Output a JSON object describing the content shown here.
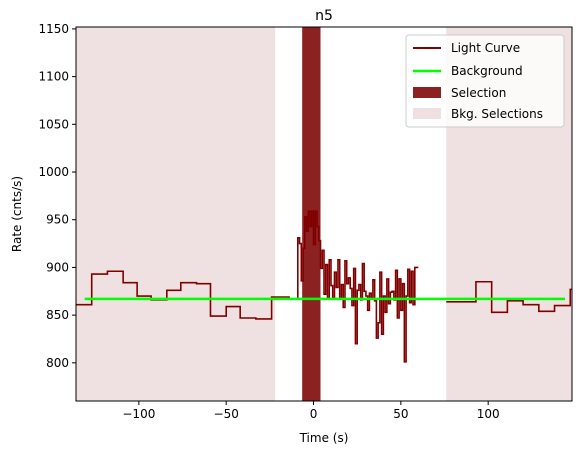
{
  "chart_data": {
    "type": "line",
    "title": "n5",
    "xlabel": "Time (s)",
    "ylabel": "Rate (cnts/s)",
    "xlim": [
      -136,
      148
    ],
    "ylim": [
      760,
      1152
    ],
    "xticks": [
      -100,
      -50,
      0,
      50,
      100
    ],
    "yticks": [
      800,
      850,
      900,
      950,
      1000,
      1050,
      1100,
      1150
    ],
    "legend_position": "top-right",
    "grid": false,
    "colors": {
      "light_curve": "#800000",
      "background": "#00ff00",
      "selection": "#8c2121",
      "bkg_selection": "#efe1e1"
    },
    "legend": {
      "light_curve": "Light Curve",
      "background": "Background",
      "selection": "Selection",
      "bkg_selections": "Bkg. Selections"
    },
    "background_level": 867,
    "selection_range": [
      -6.5,
      4.0
    ],
    "bkg_selections": [
      [
        -136,
        -22
      ],
      [
        76,
        148
      ]
    ],
    "light_curve": [
      [
        -136,
        861
      ],
      [
        -127,
        893
      ],
      [
        -118,
        896
      ],
      [
        -109,
        884
      ],
      [
        -101,
        870
      ],
      [
        -93,
        866
      ],
      [
        -84,
        876
      ],
      [
        -76,
        884
      ],
      [
        -67,
        883
      ],
      [
        -59,
        849
      ],
      [
        -50,
        859
      ],
      [
        -42,
        847
      ],
      [
        -33,
        846
      ],
      [
        -24,
        869
      ],
      [
        -14,
        867
      ],
      [
        -9,
        931
      ],
      [
        -8,
        925
      ],
      [
        -7,
        886
      ],
      [
        -6,
        920
      ],
      [
        -5,
        953
      ],
      [
        -4,
        938
      ],
      [
        -3,
        959
      ],
      [
        -2,
        943
      ],
      [
        -1,
        959
      ],
      [
        0,
        924
      ],
      [
        1,
        959
      ],
      [
        2,
        943
      ],
      [
        3,
        928
      ],
      [
        4,
        899
      ],
      [
        5,
        918
      ],
      [
        6,
        872
      ],
      [
        7,
        903
      ],
      [
        8,
        868
      ],
      [
        9,
        908
      ],
      [
        10,
        881
      ],
      [
        11,
        868
      ],
      [
        12,
        895
      ],
      [
        13,
        879
      ],
      [
        14,
        908
      ],
      [
        15,
        867
      ],
      [
        16,
        882
      ],
      [
        17,
        858
      ],
      [
        18,
        907
      ],
      [
        19,
        883
      ],
      [
        20,
        889
      ],
      [
        21,
        878
      ],
      [
        22,
        860
      ],
      [
        23,
        899
      ],
      [
        24,
        820
      ],
      [
        25,
        876
      ],
      [
        26,
        882
      ],
      [
        27,
        866
      ],
      [
        28,
        904
      ],
      [
        29,
        875
      ],
      [
        30,
        870
      ],
      [
        31,
        855
      ],
      [
        32,
        873
      ],
      [
        33,
        868
      ],
      [
        34,
        887
      ],
      [
        35,
        865
      ],
      [
        36,
        826
      ],
      [
        37,
        842
      ],
      [
        38,
        895
      ],
      [
        39,
        830
      ],
      [
        40,
        870
      ],
      [
        41,
        853
      ],
      [
        42,
        888
      ],
      [
        43,
        862
      ],
      [
        44,
        874
      ],
      [
        45,
        875
      ],
      [
        46,
        866
      ],
      [
        47,
        897
      ],
      [
        48,
        847
      ],
      [
        49,
        888
      ],
      [
        50,
        855
      ],
      [
        51,
        883
      ],
      [
        52,
        801
      ],
      [
        53,
        870
      ],
      [
        54,
        898
      ],
      [
        55,
        863
      ],
      [
        56,
        896
      ],
      [
        57,
        861
      ],
      [
        58,
        900
      ],
      [
        59,
        900
      ],
      [
        60,
        900
      ],
      [
        76,
        864
      ],
      [
        93,
        885
      ],
      [
        102,
        853
      ],
      [
        111,
        865
      ],
      [
        120,
        861
      ],
      [
        129,
        854
      ],
      [
        138,
        860
      ],
      [
        147,
        877
      ],
      [
        156,
        868
      ]
    ],
    "light_curve_end": 60
  }
}
